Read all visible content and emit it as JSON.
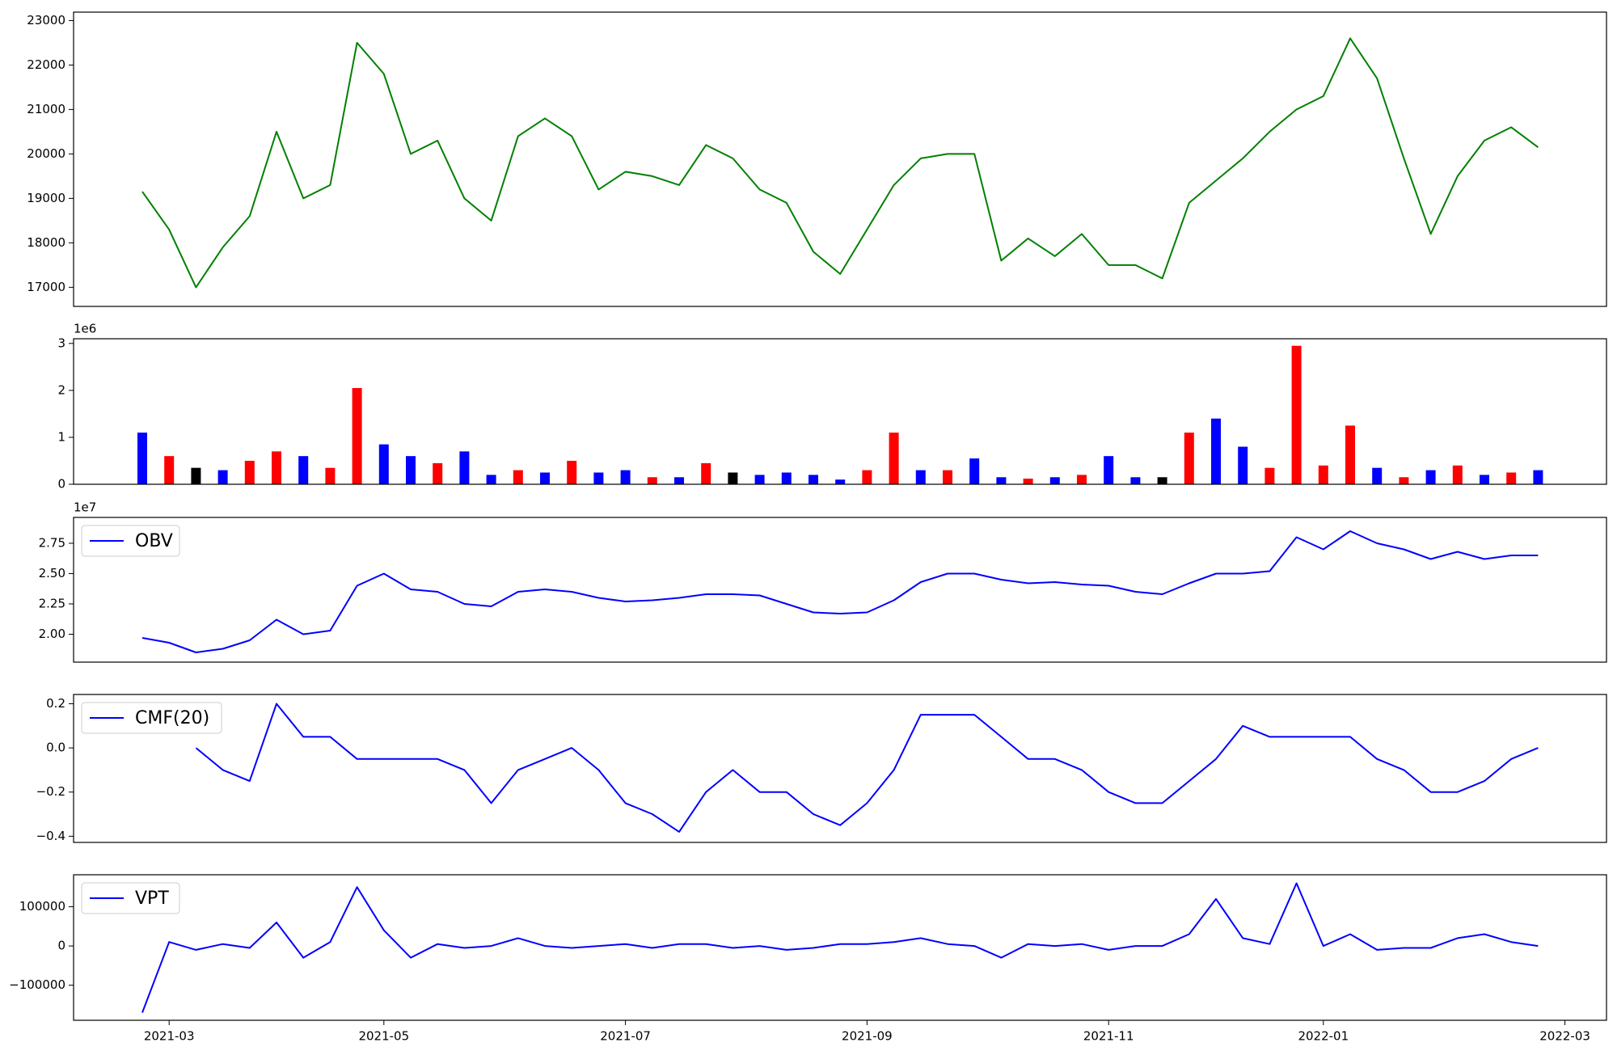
{
  "chart_data": [
    {
      "type": "line",
      "ylim": [
        16570,
        23190
      ],
      "yticks": [
        17000,
        18000,
        19000,
        20000,
        21000,
        22000,
        23000
      ],
      "series": [
        {
          "color": "#008000",
          "values": [
            19150,
            18300,
            17000,
            17900,
            18600,
            20500,
            19000,
            19300,
            22500,
            21800,
            20000,
            20300,
            19000,
            18500,
            20400,
            20800,
            20400,
            19200,
            19600,
            19500,
            19300,
            20200,
            19900,
            19200,
            18900,
            17800,
            17300,
            18300,
            19300,
            19900,
            20000,
            20000,
            17600,
            18100,
            17700,
            18200,
            17500,
            17500,
            17200,
            18900,
            19400,
            19900,
            20500,
            21000,
            21300,
            22600,
            21700,
            19900,
            18200,
            19500,
            20300,
            20600,
            20150,
            null
          ]
        }
      ]
    },
    {
      "type": "bar",
      "offset_label": "1e6",
      "ylim": [
        0,
        3100000
      ],
      "yticks": [
        0,
        {
          "value": 1000000,
          "label": "1"
        },
        {
          "value": 2000000,
          "label": "2"
        },
        {
          "value": 3000000,
          "label": "3"
        }
      ],
      "values": [
        1100000,
        600000,
        350000,
        300000,
        500000,
        700000,
        600000,
        350000,
        2050000,
        850000,
        600000,
        450000,
        700000,
        200000,
        300000,
        250000,
        500000,
        250000,
        300000,
        150000,
        150000,
        450000,
        250000,
        200000,
        250000,
        200000,
        100000,
        300000,
        1100000,
        300000,
        300000,
        550000,
        150000,
        120000,
        150000,
        200000,
        600000,
        150000,
        150000,
        1100000,
        1400000,
        800000,
        350000,
        2950000,
        400000,
        1250000,
        350000,
        150000,
        300000,
        400000,
        200000,
        250000,
        300000,
        null
      ],
      "colors": [
        "#0000ff",
        "#ff0000",
        "#000000",
        "#0000ff",
        "#ff0000",
        "#ff0000",
        "#0000ff",
        "#ff0000",
        "#ff0000",
        "#0000ff",
        "#0000ff",
        "#ff0000",
        "#0000ff",
        "#0000ff",
        "#ff0000",
        "#0000ff",
        "#ff0000",
        "#0000ff",
        "#0000ff",
        "#ff0000",
        "#0000ff",
        "#ff0000",
        "#000000",
        "#0000ff",
        "#0000ff",
        "#0000ff",
        "#0000ff",
        "#ff0000",
        "#ff0000",
        "#0000ff",
        "#ff0000",
        "#0000ff",
        "#0000ff",
        "#ff0000",
        "#0000ff",
        "#ff0000",
        "#0000ff",
        "#0000ff",
        "#000000",
        "#ff0000",
        "#0000ff",
        "#0000ff",
        "#ff0000",
        "#ff0000",
        "#ff0000",
        "#ff0000",
        "#0000ff",
        "#ff0000",
        "#0000ff",
        "#ff0000",
        "#0000ff",
        "#ff0000",
        "#0000ff",
        "#0000ff"
      ]
    },
    {
      "type": "line",
      "offset_label": "1e7",
      "ylim": [
        17700000,
        29630000
      ],
      "yticks": [
        {
          "value": 20000000,
          "label": "2.00"
        },
        {
          "value": 22500000,
          "label": "2.25"
        },
        {
          "value": 25000000,
          "label": "2.50"
        },
        {
          "value": 27500000,
          "label": "2.75"
        }
      ],
      "series": [
        {
          "name": "OBV",
          "color": "#0000ff",
          "values": [
            19700000,
            19300000,
            18500000,
            18800000,
            19500000,
            21200000,
            20000000,
            20300000,
            24000000,
            25000000,
            23700000,
            23500000,
            22500000,
            22300000,
            23500000,
            23700000,
            23500000,
            23000000,
            22700000,
            22800000,
            23000000,
            23300000,
            23300000,
            23200000,
            22500000,
            21800000,
            21700000,
            21800000,
            22800000,
            24300000,
            25000000,
            25000000,
            24500000,
            24200000,
            24300000,
            24100000,
            24000000,
            23500000,
            23300000,
            24200000,
            25000000,
            25000000,
            25200000,
            28000000,
            27000000,
            28500000,
            27500000,
            27000000,
            26200000,
            26800000,
            26200000,
            26500000,
            26500000,
            null
          ]
        }
      ]
    },
    {
      "type": "line",
      "ylim": [
        -0.428,
        0.242
      ],
      "yticks": [
        {
          "value": -0.4,
          "label": "−0.4"
        },
        {
          "value": -0.2,
          "label": "−0.2"
        },
        {
          "value": 0,
          "label": "0.0"
        },
        0.2
      ],
      "series": [
        {
          "name": "CMF(20)",
          "color": "#0000ff",
          "values": [
            null,
            null,
            0.0,
            -0.1,
            -0.15,
            0.2,
            0.05,
            0.05,
            -0.05,
            -0.05,
            -0.05,
            -0.05,
            -0.1,
            -0.25,
            -0.1,
            -0.05,
            0.0,
            -0.1,
            -0.25,
            -0.3,
            -0.38,
            -0.2,
            -0.1,
            -0.2,
            -0.2,
            -0.3,
            -0.35,
            -0.25,
            -0.1,
            0.15,
            0.15,
            0.15,
            0.05,
            -0.05,
            -0.05,
            -0.1,
            -0.2,
            -0.25,
            -0.25,
            -0.15,
            -0.05,
            0.1,
            0.05,
            0.05,
            0.05,
            0.05,
            -0.05,
            -0.1,
            -0.2,
            -0.2,
            -0.15,
            -0.05,
            0.0,
            null
          ]
        }
      ]
    },
    {
      "type": "line",
      "ylim": [
        -189500,
        181600
      ],
      "yticks": [
        {
          "value": -100000,
          "label": "−100000"
        },
        0,
        100000
      ],
      "series": [
        {
          "name": "VPT",
          "color": "#0000ff",
          "values": [
            -170000,
            10000,
            -10000,
            5000,
            -5000,
            60000,
            -30000,
            10000,
            150000,
            40000,
            -30000,
            5000,
            -5000,
            0,
            20000,
            0,
            -5000,
            0,
            5000,
            -5000,
            5000,
            5000,
            -5000,
            0,
            -10000,
            -5000,
            5000,
            5000,
            10000,
            20000,
            5000,
            0,
            -30000,
            5000,
            0,
            5000,
            -10000,
            0,
            0,
            30000,
            120000,
            20000,
            5000,
            160000,
            0,
            30000,
            -10000,
            -5000,
            -5000,
            20000,
            30000,
            10000,
            0,
            null
          ]
        }
      ],
      "categories": [
        null,
        "2021-03",
        null,
        null,
        null,
        null,
        null,
        null,
        null,
        "2021-05",
        null,
        null,
        null,
        null,
        null,
        null,
        null,
        null,
        "2021-07",
        null,
        null,
        null,
        null,
        null,
        null,
        null,
        null,
        "2021-09",
        null,
        null,
        null,
        null,
        null,
        null,
        null,
        null,
        "2021-11",
        null,
        null,
        null,
        null,
        null,
        null,
        null,
        "2022-01",
        null,
        null,
        null,
        null,
        null,
        null,
        null,
        null,
        "2022-03"
      ]
    }
  ]
}
